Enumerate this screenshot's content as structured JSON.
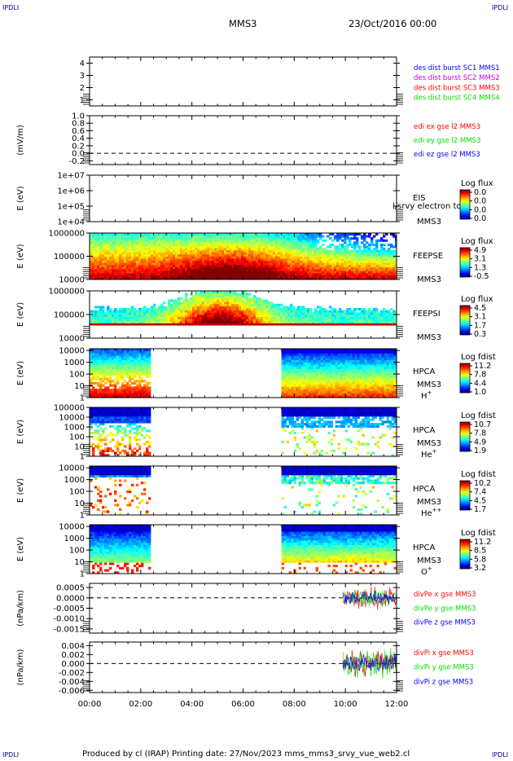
{
  "corner_text": "IPDLI",
  "header": {
    "spacecraft": "MMS3",
    "date": "23/Oct/2016 00:00"
  },
  "footer": "Produced by cl (IRAP)    Printing date: 27/Nov/2023    mms_mms3_srvy_vue_web2.cl",
  "colors": {
    "axis": "#000000",
    "red": "#ff0000",
    "green": "#00dd00",
    "blue": "#0000ff",
    "magenta": "#cc00cc"
  },
  "chart_data": {
    "type": "multi-panel time series and spectrograms",
    "x_axis": {
      "ticks": [
        "00:00",
        "02:00",
        "04:00",
        "06:00",
        "08:00",
        "10:00",
        "12:00"
      ],
      "range_hours": [
        0,
        12
      ]
    },
    "panels": [
      {
        "id": "burst",
        "type": "line",
        "ylabel": "",
        "ylim": [
          0.5,
          4.5
        ],
        "yticks": [
          "1",
          "2",
          "3",
          "4"
        ],
        "series": [
          {
            "name": "des dist burst SC1 MMS1",
            "color": "#0000ff",
            "values": []
          },
          {
            "name": "des dist burst SC2 MMS2",
            "color": "#cc00cc",
            "values": []
          },
          {
            "name": "des dist burst SC3 MMS3",
            "color": "#ff0000",
            "values": []
          },
          {
            "name": "des dist burst SC4 MMS4",
            "color": "#00dd00",
            "values": []
          }
        ]
      },
      {
        "id": "edi",
        "type": "line",
        "ylabel": "(mV/m)",
        "ylim": [
          -0.3,
          1.0
        ],
        "yticks": [
          "1.0",
          "0.8",
          "0.6",
          "0.4",
          "0.2",
          "0.0",
          "-0.2"
        ],
        "dashed_zero": true,
        "series": [
          {
            "name": "edi ex gse l2 MMS3",
            "color": "#ff0000",
            "values": []
          },
          {
            "name": "edi ey gse l2 MMS3",
            "color": "#00dd00",
            "values": []
          },
          {
            "name": "edi ez gse l2 MMS3",
            "color": "#0000ff",
            "values": []
          }
        ]
      },
      {
        "id": "eis",
        "type": "heatmap",
        "ylabel": "E (eV)",
        "ylim_log": [
          4,
          7
        ],
        "yticks": [
          "1e+07",
          "1e+06",
          "1e+05",
          "1e+04"
        ],
        "labels": [
          "EIS",
          "MMS3"
        ],
        "overlay_text": "l/srvy electron to",
        "colorbar": {
          "title": "Log flux",
          "ticks": [
            "0.0",
            "0.0",
            "0.0",
            "0.0"
          ]
        },
        "intervals": []
      },
      {
        "id": "feeps_e",
        "type": "heatmap",
        "ylabel": "E (eV)",
        "ylim_log": [
          4,
          6
        ],
        "yticks": [
          "1000000",
          "100000",
          "10000"
        ],
        "labels": [
          "FEEPSE",
          "MMS3"
        ],
        "colorbar": {
          "title": "Log flux",
          "ticks": [
            "4.9",
            "3.1",
            "1.3",
            "-0.5"
          ]
        },
        "intervals": [
          [
            0,
            12
          ]
        ]
      },
      {
        "id": "feeps_i",
        "type": "heatmap",
        "ylabel": "E (eV)",
        "ylim_log": [
          4,
          6
        ],
        "yticks": [
          "1000000",
          "100000",
          "10000"
        ],
        "labels": [
          "FEEPSI",
          "MMS3"
        ],
        "colorbar": {
          "title": "Log flux",
          "ticks": [
            "4.5",
            "3.1",
            "1.7",
            "0.3"
          ]
        },
        "intervals": [
          [
            0,
            12
          ]
        ]
      },
      {
        "id": "hpca_h",
        "type": "heatmap",
        "ylabel": "E (eV)",
        "ylim_log": [
          0,
          4.15
        ],
        "yticks": [
          "10000",
          "1000",
          "100",
          "10",
          "1"
        ],
        "labels": [
          "HPCA",
          "MMS3"
        ],
        "species": "H",
        "species_sup": "+",
        "colorbar": {
          "title": "Log fdist",
          "ticks": [
            "11.2",
            "7.8",
            "4.4",
            "1.0"
          ]
        },
        "intervals": [
          [
            0,
            2.35
          ],
          [
            7.5,
            12
          ]
        ]
      },
      {
        "id": "hpca_he",
        "type": "heatmap",
        "ylabel": "E (eV)",
        "ylim_log": [
          0,
          5
        ],
        "yticks": [
          "100000",
          "10000",
          "1000",
          "100",
          "10",
          "1"
        ],
        "labels": [
          "HPCA",
          "MMS3"
        ],
        "species": "He",
        "species_sup": "+",
        "colorbar": {
          "title": "Log fdist",
          "ticks": [
            "10.7",
            "7.8",
            "4.9",
            "1.9"
          ]
        },
        "intervals": [
          [
            0,
            2.35
          ],
          [
            7.5,
            12
          ]
        ]
      },
      {
        "id": "hpca_he2",
        "type": "heatmap",
        "ylabel": "E (eV)",
        "ylim_log": [
          0,
          4.15
        ],
        "yticks": [
          "10000",
          "1000",
          "100",
          "10",
          "1"
        ],
        "labels": [
          "HPCA",
          "MMS3"
        ],
        "species": "He",
        "species_sup": "++",
        "colorbar": {
          "title": "Log fdist",
          "ticks": [
            "10.2",
            "7.4",
            "4.5",
            "1.7"
          ]
        },
        "intervals": [
          [
            0,
            2.35
          ],
          [
            7.5,
            12
          ]
        ]
      },
      {
        "id": "hpca_o",
        "type": "heatmap",
        "ylabel": "E (eV)",
        "ylim_log": [
          0,
          4.15
        ],
        "yticks": [
          "10000",
          "1000",
          "100",
          "10",
          "1"
        ],
        "labels": [
          "HPCA",
          "MMS3"
        ],
        "species": "O",
        "species_sup": "+",
        "colorbar": {
          "title": "Log fdist",
          "ticks": [
            "11.2",
            "8.5",
            "5.8",
            "3.2"
          ]
        },
        "intervals": [
          [
            0,
            2.35
          ],
          [
            7.5,
            12
          ]
        ]
      },
      {
        "id": "divpe",
        "type": "line",
        "ylabel": "(nPa/km)",
        "ylim": [
          -0.0017,
          0.0007
        ],
        "yticks": [
          "0.0005",
          "0.0000",
          "-0.0005",
          "-0.0010",
          "-0.0015"
        ],
        "dashed_zero": true,
        "series": [
          {
            "name": "divPe x gse MMS3",
            "color": "#ff0000",
            "x_range": [
              9.9,
              12
            ],
            "amplitude": 0.0005
          },
          {
            "name": "divPe y gse MMS3",
            "color": "#00dd00",
            "x_range": [
              9.9,
              12
            ],
            "amplitude": 0.0004
          },
          {
            "name": "divPe z gse MMS3",
            "color": "#0000ff",
            "x_range": [
              9.9,
              12
            ],
            "amplitude": 0.0003
          }
        ]
      },
      {
        "id": "divpi",
        "type": "line",
        "ylabel": "(nPa/km)",
        "ylim": [
          -0.0065,
          0.0048
        ],
        "yticks": [
          "0.004",
          "0.002",
          "0.000",
          "-0.002",
          "-0.004",
          "-0.006"
        ],
        "dashed_zero": true,
        "series": [
          {
            "name": "divPi x gse MMS3",
            "color": "#ff0000",
            "x_range": [
              9.9,
              12
            ],
            "amplitude": 0.003
          },
          {
            "name": "divPi y gse MMS3",
            "color": "#00dd00",
            "x_range": [
              9.9,
              12
            ],
            "amplitude": 0.003
          },
          {
            "name": "divPi z gse MMS3",
            "color": "#0000ff",
            "x_range": [
              9.9,
              12
            ],
            "amplitude": 0.002
          }
        ]
      }
    ]
  }
}
